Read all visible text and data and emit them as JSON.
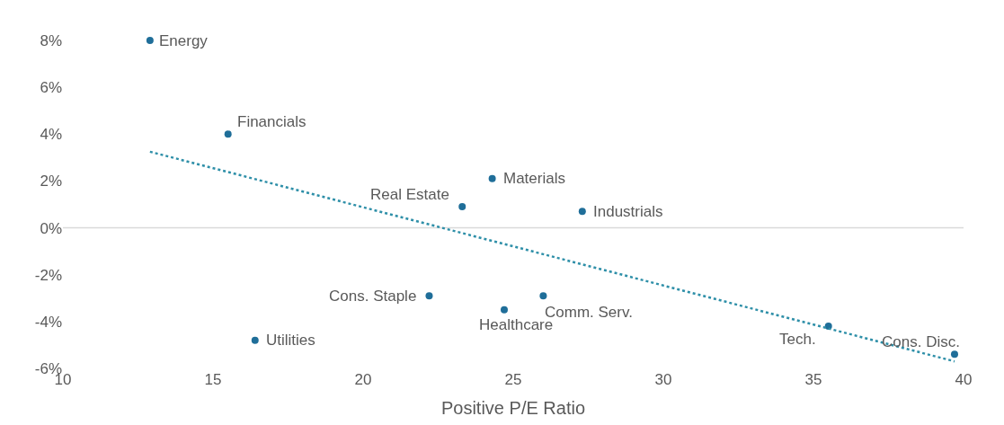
{
  "chart_data": {
    "type": "scatter",
    "xlabel": "Positive P/E Ratio",
    "series": [
      {
        "color": "#1f6e99",
        "marker": "circle",
        "x": [
          12.9,
          15.5,
          24.3,
          23.3,
          27.3,
          22.2,
          24.7,
          26.0,
          16.4,
          35.5,
          39.7
        ],
        "values": [
          8.0,
          4.0,
          2.1,
          0.9,
          0.7,
          -2.9,
          -3.5,
          -2.9,
          -4.8,
          -4.2,
          -5.4
        ]
      },
      {
        "type": "line",
        "color": "#2e8fa8",
        "line_style": "dotted",
        "marker": "none",
        "x": [
          12.9,
          39.7
        ],
        "values": [
          3.25,
          -5.7
        ]
      }
    ],
    "annotations": [
      {
        "text": "Energy",
        "x": 12.9,
        "y": 8.0
      },
      {
        "text": "Financials",
        "x": 15.5,
        "y": 4.0
      },
      {
        "text": "Materials",
        "x": 24.3,
        "y": 2.1
      },
      {
        "text": "Real Estate",
        "x": 23.3,
        "y": 0.9
      },
      {
        "text": "Industrials",
        "x": 27.3,
        "y": 0.7
      },
      {
        "text": "Cons. Staple",
        "x": 22.2,
        "y": -2.9
      },
      {
        "text": "Healthcare",
        "x": 24.7,
        "y": -3.5
      },
      {
        "text": "Comm. Serv.",
        "x": 26.0,
        "y": -2.9
      },
      {
        "text": "Utilities",
        "x": 16.4,
        "y": -4.8
      },
      {
        "text": "Tech.",
        "x": 35.5,
        "y": -4.2
      },
      {
        "text": "Cons. Disc.",
        "x": 39.7,
        "y": -5.4
      }
    ],
    "ref_lines": [
      {
        "axis": "y",
        "value": 0,
        "color": "#d9d9d9"
      }
    ],
    "xlim": [
      10,
      40
    ],
    "xticks": [
      10,
      15,
      20,
      25,
      30,
      35,
      40
    ],
    "ylim": [
      -6,
      8
    ],
    "yticks": [
      {
        "value": -6,
        "label": "-6%"
      },
      {
        "value": -4,
        "label": "-4%"
      },
      {
        "value": -2,
        "label": "-2%"
      },
      {
        "value": 0,
        "label": "0%"
      },
      {
        "value": 2,
        "label": "2%"
      },
      {
        "value": 4,
        "label": "4%"
      },
      {
        "value": 6,
        "label": "6%"
      },
      {
        "value": 8,
        "label": "8%"
      }
    ],
    "grid": false,
    "legend": false
  }
}
